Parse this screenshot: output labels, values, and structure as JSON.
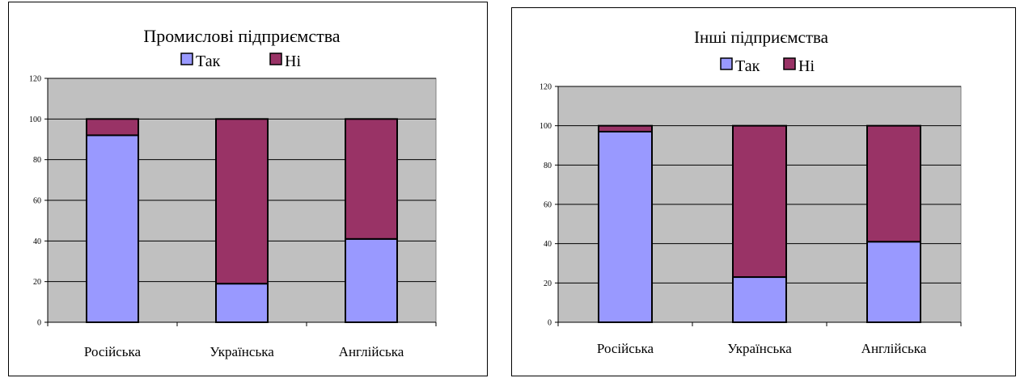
{
  "colors": {
    "yes": "#9999ff",
    "no": "#993366",
    "plot_bg": "#c0c0c0"
  },
  "chart_data": [
    {
      "type": "bar",
      "stacked": true,
      "title": "Промислові підприємства",
      "categories": [
        "Російська",
        "Українська",
        "Англійська"
      ],
      "series": [
        {
          "name": "Так",
          "values": [
            92,
            19,
            41
          ]
        },
        {
          "name": "Ні",
          "values": [
            8,
            81,
            59
          ]
        }
      ],
      "ylim": [
        0,
        120
      ],
      "yticks": [
        0,
        20,
        40,
        60,
        80,
        100,
        120
      ],
      "grid": true,
      "legend": "top-center"
    },
    {
      "type": "bar",
      "stacked": true,
      "title": "Інші підприємства",
      "categories": [
        "Російська",
        "Українська",
        "Англійська"
      ],
      "series": [
        {
          "name": "Так",
          "values": [
            97,
            23,
            41
          ]
        },
        {
          "name": "Ні",
          "values": [
            3,
            77,
            59
          ]
        }
      ],
      "ylim": [
        0,
        120
      ],
      "yticks": [
        0,
        20,
        40,
        60,
        80,
        100,
        120
      ],
      "grid": true,
      "legend": "top-center"
    }
  ]
}
